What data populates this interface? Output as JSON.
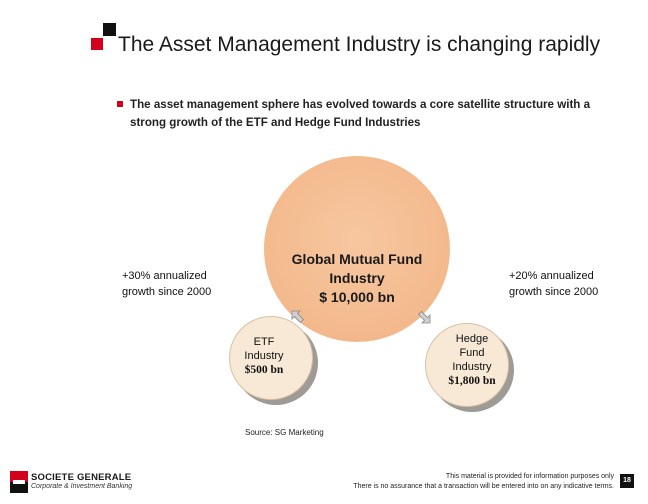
{
  "title": "The Asset Management Industry is changing rapidly",
  "bullet": "The asset management sphere has evolved towards a core satellite structure with a strong growth of the ETF and Hedge Fund Industries",
  "diagram": {
    "center": {
      "line1": "Global Mutual Fund",
      "line2": "Industry",
      "line3": "$ 10,000 bn",
      "color": "#f3b98c"
    },
    "left_growth": {
      "line1": "+30% annualized",
      "line2": "growth since 2000"
    },
    "right_growth": {
      "line1": "+20% annualized",
      "line2": "growth since 2000"
    },
    "etf": {
      "line1": "ETF",
      "line2": "Industry",
      "amount": "$500 bn"
    },
    "hedge": {
      "line1": "Hedge",
      "line2": "Fund",
      "line3": "Industry",
      "amount": "$1,800 bn"
    }
  },
  "source": "Source: SG Marketing",
  "footer": {
    "company": "SOCIETE GENERALE",
    "division": "Corporate & Investment Banking",
    "disclaimer_line1": "This material is provided for information purposes only",
    "disclaimer_line2": "There is no assurance that a transaction will be entered into on any indicative terms.",
    "page_number": "18"
  },
  "colors": {
    "brand_red": "#d2001b",
    "brand_black": "#111111",
    "satellite_fill": "#f7e9d6"
  }
}
